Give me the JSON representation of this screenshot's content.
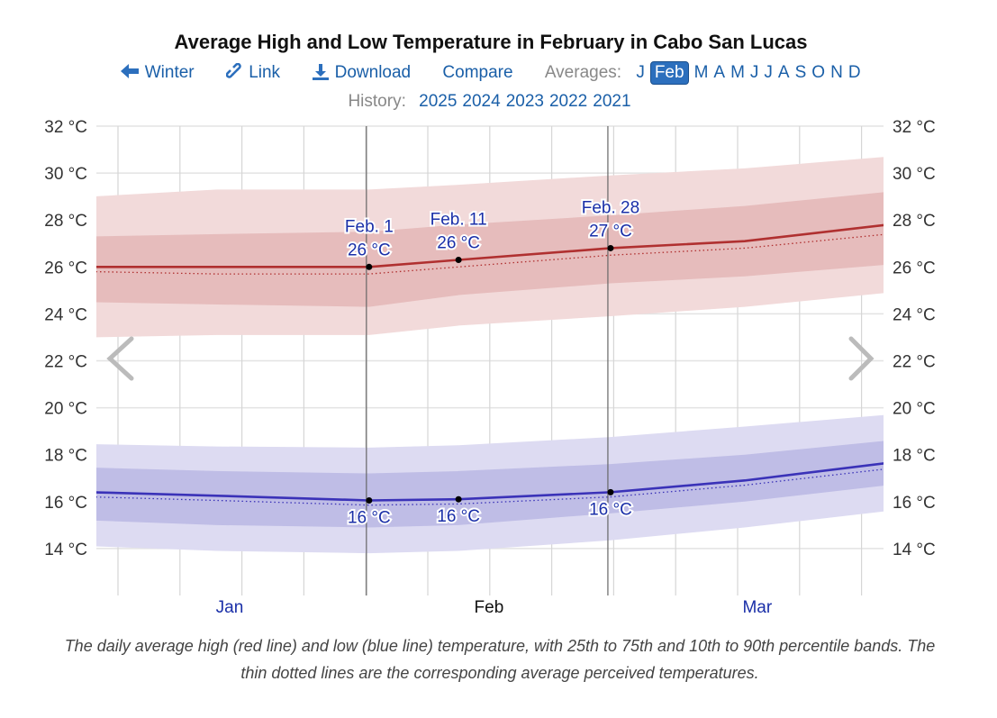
{
  "title": "Average High and Low Temperature in February in Cabo San Lucas",
  "nav": {
    "back_label": "Winter",
    "link_label": "Link",
    "download_label": "Download",
    "compare_label": "Compare",
    "averages_label": "Averages:",
    "months": [
      "J",
      "Feb",
      "M",
      "A",
      "M",
      "J",
      "J",
      "A",
      "S",
      "O",
      "N",
      "D"
    ],
    "selected_month_index": 1
  },
  "history": {
    "label": "History:",
    "years": [
      "2025",
      "2024",
      "2023",
      "2022",
      "2021"
    ]
  },
  "caption": "The daily average high (red line) and low (blue line) temperature, with 25th to 75th and 10th to 90th percentile bands. The thin dotted lines are the corresponding average perceived temperatures.",
  "colors": {
    "high": "#b03030",
    "high_band_inner": "#e6bcbc",
    "high_band_outer": "#f2dada",
    "low": "#3a32b8",
    "low_band_inner": "#bfbde6",
    "low_band_outer": "#dddbf2",
    "link": "#1a5fa8",
    "annotation": "#1a2fa8"
  },
  "chart_data": {
    "type": "line",
    "title": "Average High and Low Temperature in February in Cabo San Lucas",
    "x_range": [
      "Jan 1",
      "Mar 31"
    ],
    "y_range": [
      12,
      32
    ],
    "y_ticks": [
      "14 °C",
      "16 °C",
      "18 °C",
      "20 °C",
      "22 °C",
      "24 °C",
      "26 °C",
      "28 °C",
      "30 °C",
      "32 °C"
    ],
    "y_tick_values": [
      14,
      16,
      18,
      20,
      22,
      24,
      26,
      28,
      30,
      32
    ],
    "x_tick_labels": [
      "Jan",
      "Feb",
      "Mar"
    ],
    "highlighted_month": "Feb",
    "grid": true,
    "x": [
      "Jan 1",
      "Jan 15",
      "Feb 1",
      "Feb 11",
      "Feb 28",
      "Mar 15",
      "Mar 31"
    ],
    "high": {
      "mean": [
        26.0,
        26.0,
        26.0,
        26.3,
        26.8,
        27.1,
        27.8
      ],
      "perceived": [
        25.8,
        25.7,
        25.7,
        26.0,
        26.5,
        26.8,
        27.4
      ],
      "p10": [
        23.0,
        23.1,
        23.1,
        23.5,
        23.9,
        24.3,
        24.9
      ],
      "p25": [
        24.5,
        24.4,
        24.3,
        24.8,
        25.3,
        25.6,
        26.1
      ],
      "p75": [
        27.3,
        27.4,
        27.5,
        27.8,
        28.2,
        28.6,
        29.2
      ],
      "p90": [
        29.0,
        29.3,
        29.3,
        29.5,
        29.9,
        30.2,
        30.7
      ]
    },
    "low": {
      "mean": [
        16.4,
        16.25,
        16.05,
        16.1,
        16.4,
        16.9,
        17.65
      ],
      "perceived": [
        16.2,
        16.05,
        15.85,
        15.9,
        16.2,
        16.7,
        17.4
      ],
      "p10": [
        14.1,
        13.9,
        13.8,
        13.9,
        14.35,
        14.9,
        15.6
      ],
      "p25": [
        15.2,
        15.0,
        14.9,
        15.0,
        15.5,
        16.0,
        16.7
      ],
      "p75": [
        17.45,
        17.3,
        17.2,
        17.3,
        17.6,
        18.0,
        18.6
      ],
      "p90": [
        18.45,
        18.35,
        18.3,
        18.4,
        18.75,
        19.2,
        19.7
      ]
    },
    "annotations": [
      {
        "date": "Feb 1",
        "date_label": "Feb. 1",
        "high_label": "26 °C",
        "high": 26.0,
        "low_label": "16 °C",
        "low": 16.05,
        "marker_line": true
      },
      {
        "date": "Feb 11",
        "date_label": "Feb. 11",
        "high_label": "26 °C",
        "high": 26.3,
        "low_label": "16 °C",
        "low": 16.1,
        "marker_line": false
      },
      {
        "date": "Feb 28",
        "date_label": "Feb. 28",
        "high_label": "27 °C",
        "high": 26.8,
        "low_label": "16 °C",
        "low": 16.4,
        "marker_line": true
      }
    ]
  }
}
